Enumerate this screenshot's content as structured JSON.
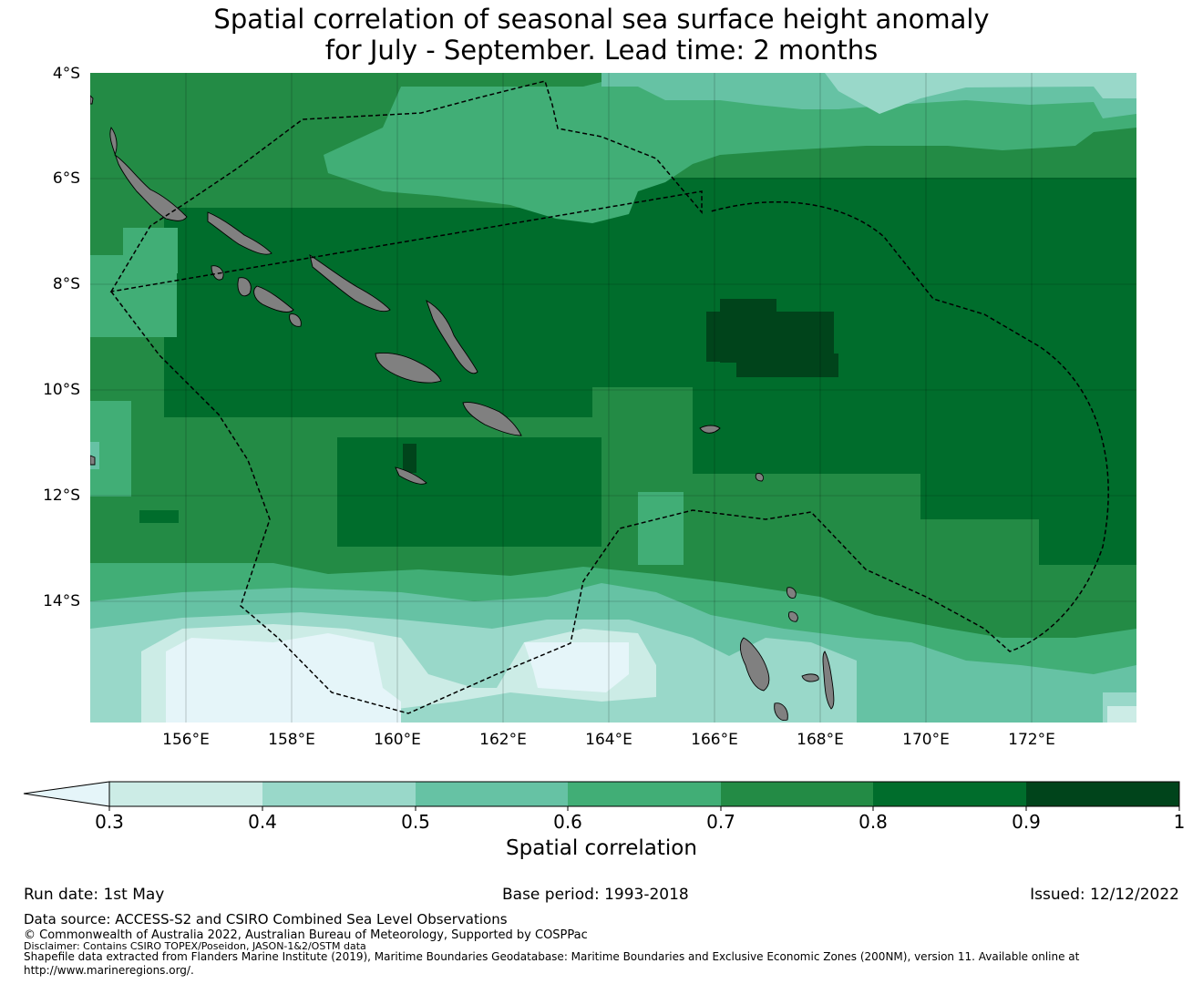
{
  "title": {
    "line1": "Spatial correlation of seasonal sea surface height anomaly",
    "line2": "for July - September. Lead time: 2 months"
  },
  "map": {
    "lat_labels": [
      "4°S",
      "6°S",
      "8°S",
      "10°S",
      "12°S",
      "14°S"
    ],
    "lon_labels": [
      "156°E",
      "158°E",
      "160°E",
      "162°E",
      "164°E",
      "166°E",
      "168°E",
      "170°E",
      "172°E"
    ],
    "land_color": "#808080",
    "eez_line_style": "dashed",
    "grid": true
  },
  "colorbar": {
    "label": "Spatial correlation",
    "ticks": [
      "0.3",
      "0.4",
      "0.5",
      "0.6",
      "0.7",
      "0.8",
      "0.9",
      "1"
    ],
    "below_color": "#e5f5f9",
    "colors": [
      "#ccece6",
      "#99d8c9",
      "#66c2a4",
      "#41ae76",
      "#238b45",
      "#006d2c",
      "#00441b"
    ]
  },
  "footer": {
    "run_date": "Run date: 1st May",
    "base_period": "Base period: 1993-2018",
    "issued": "Issued: 12/12/2022",
    "data_source": "Data source: ACCESS-S2 and CSIRO Combined Sea Level Observations",
    "copyright": "© Commonwealth of Australia 2022, Australian Bureau of Meteorology, Supported by COSPPac",
    "disclaimer": "Disclaimer: Contains CSIRO TOPEX/Poseidon, JASON-1&2/OSTM data",
    "shapefile": "Shapefile data extracted from Flanders Marine Institute (2019), Maritime Boundaries Geodatabase: Maritime Boundaries and Exclusive Economic Zones (200NM), version 11. Available online at",
    "url": "http://www.marineregions.org/."
  }
}
